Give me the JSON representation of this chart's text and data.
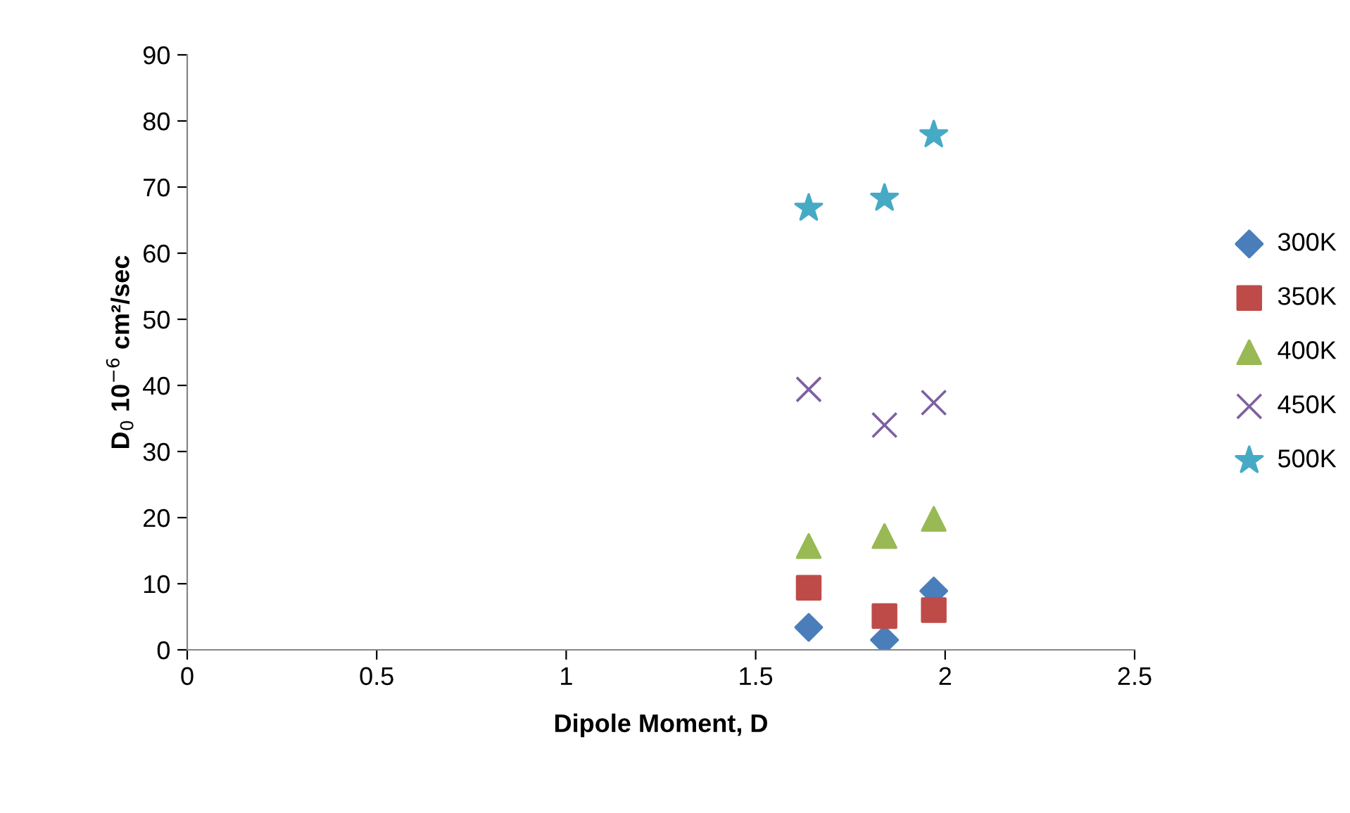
{
  "chart_data": {
    "type": "scatter",
    "xlabel": "Dipole Moment, D",
    "ylabel": "D$_{0}$ 10$^{−6}$ cm²/sec",
    "x": [
      1.64,
      1.84,
      1.97
    ],
    "series": [
      {
        "name": "300K",
        "color": "#4a7ebb",
        "marker": "diamond",
        "values": [
          3.4,
          1.5,
          8.9
        ]
      },
      {
        "name": "350K",
        "color": "#be4b48",
        "marker": "square",
        "values": [
          9.4,
          5.1,
          6.0
        ]
      },
      {
        "name": "400K",
        "color": "#98b954",
        "marker": "triangle",
        "values": [
          15.7,
          17.2,
          19.8
        ]
      },
      {
        "name": "450K",
        "color": "#7d60a0",
        "marker": "cross",
        "values": [
          39.4,
          34.0,
          37.4
        ]
      },
      {
        "name": "500K",
        "color": "#46aac5",
        "marker": "star",
        "values": [
          66.8,
          68.3,
          77.9
        ]
      }
    ],
    "xlim": [
      0,
      2.5
    ],
    "xticks": [
      0,
      0.5,
      1,
      1.5,
      2,
      2.5
    ],
    "ylim": [
      0,
      90
    ],
    "yticks": [
      0,
      10,
      20,
      30,
      40,
      50,
      60,
      70,
      80,
      90
    ],
    "grid": false,
    "legend": "right"
  }
}
